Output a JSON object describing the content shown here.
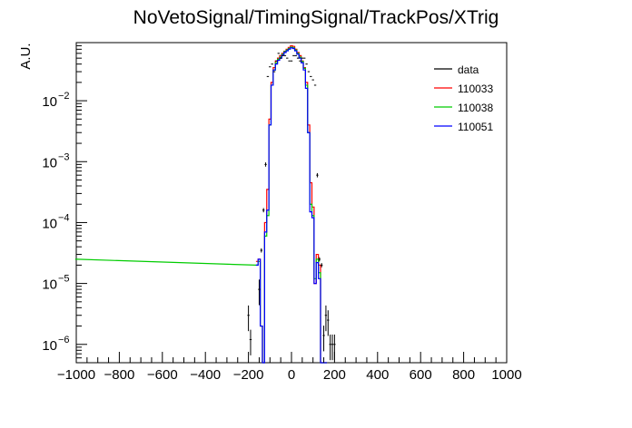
{
  "chart_data": {
    "type": "line",
    "title": "NoVetoSignal/TimingSignal/TrackPos/XTrig",
    "xlabel": "",
    "ylabel": "A.U.",
    "xlim": [
      -1000,
      1000
    ],
    "ylim": [
      5e-07,
      0.09
    ],
    "log_y": true,
    "x_ticks": [
      "−1000",
      "−800",
      "−600",
      "−400",
      "−200",
      "0",
      "200",
      "400",
      "600",
      "800",
      "1000"
    ],
    "y_ticks": [
      {
        "base": "10",
        "exp": "−2"
      },
      {
        "base": "10",
        "exp": "−3"
      },
      {
        "base": "10",
        "exp": "−4"
      },
      {
        "base": "10",
        "exp": "−5"
      },
      {
        "base": "10",
        "exp": "−6"
      }
    ],
    "legend": {
      "position": "top-right"
    },
    "colors": {
      "data": "#000000",
      "110033": "#ff0000",
      "110038": "#00cc00",
      "110051": "#0000ff"
    },
    "series": [
      {
        "name": "data",
        "style": "points",
        "x": [
          -200,
          -190,
          -150,
          -140,
          -130,
          -120,
          -110,
          -100,
          -90,
          -80,
          -70,
          -60,
          -50,
          -40,
          -30,
          -20,
          -10,
          0,
          10,
          20,
          30,
          40,
          50,
          60,
          70,
          80,
          90,
          100,
          110,
          120,
          130,
          140,
          150,
          160,
          170,
          180,
          190,
          200
        ],
        "y": [
          3e-06,
          1.2e-06,
          8e-06,
          3.5e-05,
          0.00016,
          0.0009,
          0.025,
          0.036,
          0.04,
          0.03,
          0.045,
          0.06,
          0.05,
          0.055,
          0.055,
          0.05,
          0.045,
          0.045,
          0.055,
          0.055,
          0.05,
          0.045,
          0.05,
          0.05,
          0.04,
          0.03,
          0.025,
          0.022,
          0.018,
          0.0006,
          2.5e-05,
          2e-05,
          1.4e-06,
          3e-06,
          2.5e-06,
          1e-06,
          1e-06,
          1e-06
        ]
      },
      {
        "name": "110033",
        "style": "step",
        "x": [
          -160,
          -150,
          -140,
          -130,
          -120,
          -110,
          -100,
          -90,
          -80,
          -70,
          -60,
          -50,
          -40,
          -30,
          -20,
          -10,
          0,
          10,
          20,
          30,
          40,
          50,
          60,
          70,
          80,
          90,
          100,
          110,
          120,
          130,
          140,
          150,
          160
        ],
        "y": [
          2.3e-05,
          2.5e-05,
          2e-06,
          5e-07,
          0.0001,
          0.00035,
          0.005,
          0.02,
          0.035,
          0.045,
          0.05,
          0.055,
          0.06,
          0.065,
          0.07,
          0.075,
          0.08,
          0.078,
          0.07,
          0.062,
          0.055,
          0.045,
          0.035,
          0.02,
          0.004,
          0.00045,
          0.00018,
          1e-05,
          3e-05,
          2e-05,
          5e-07,
          5e-07,
          5e-07
        ]
      },
      {
        "name": "110038",
        "style": "step",
        "x": [
          -1000,
          -160,
          -150,
          -140,
          -130,
          -120,
          -110,
          -100,
          -90,
          -80,
          -70,
          -60,
          -50,
          -40,
          -30,
          -20,
          -10,
          0,
          10,
          20,
          30,
          40,
          50,
          60,
          70,
          80,
          90,
          100,
          110,
          120,
          130,
          140,
          150,
          160
        ],
        "y": [
          2.5e-05,
          2e-05,
          2.3e-05,
          2e-06,
          5e-07,
          6e-05,
          0.00013,
          0.004,
          0.018,
          0.032,
          0.042,
          0.048,
          0.052,
          0.058,
          0.064,
          0.068,
          0.072,
          0.076,
          0.074,
          0.068,
          0.06,
          0.052,
          0.044,
          0.034,
          0.018,
          0.003,
          0.0002,
          0.00013,
          1.2e-05,
          2.5e-05,
          1.5e-05,
          5e-07,
          5e-07,
          5e-07
        ]
      },
      {
        "name": "110051",
        "style": "step",
        "x": [
          -160,
          -150,
          -140,
          -130,
          -120,
          -110,
          -100,
          -90,
          -80,
          -70,
          -60,
          -50,
          -40,
          -30,
          -20,
          -10,
          0,
          10,
          20,
          30,
          40,
          50,
          60,
          70,
          80,
          90,
          100,
          110,
          120,
          130,
          140,
          150,
          160
        ],
        "y": [
          2e-05,
          2.5e-05,
          2e-06,
          5e-07,
          7e-05,
          0.00016,
          0.004,
          0.018,
          0.032,
          0.04,
          0.046,
          0.05,
          0.056,
          0.062,
          0.066,
          0.07,
          0.074,
          0.072,
          0.066,
          0.058,
          0.05,
          0.042,
          0.032,
          0.016,
          0.003,
          0.00015,
          0.00012,
          1e-05,
          2.2e-05,
          1.2e-05,
          5e-07,
          5e-07,
          5e-07
        ]
      }
    ]
  }
}
